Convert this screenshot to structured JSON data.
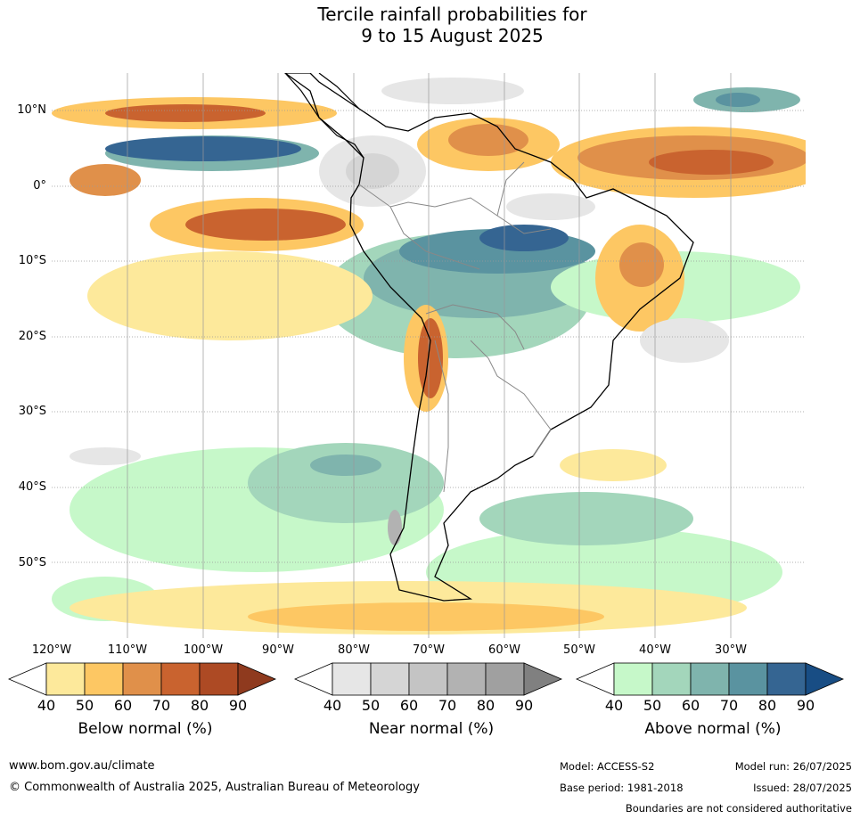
{
  "title": {
    "line1": "Tercile rainfall probabilities for",
    "line2": "9 to 15 August 2025"
  },
  "map": {
    "latitude_labels": [
      "10°N",
      "0°",
      "10°S",
      "20°S",
      "30°S",
      "40°S",
      "50°S"
    ],
    "longitude_labels": [
      "120°W",
      "110°W",
      "100°W",
      "90°W",
      "80°W",
      "70°W",
      "60°W",
      "50°W",
      "40°W",
      "30°W"
    ],
    "ocean_color": "#ffffff",
    "coast_color": "#000000",
    "border_color": "#888888"
  },
  "legends": [
    {
      "title": "Below normal (%)",
      "ticks": [
        "40",
        "50",
        "60",
        "70",
        "80",
        "90"
      ],
      "colors": [
        "#ffffff",
        "#fde99b",
        "#fdc763",
        "#e0904a",
        "#c9632f",
        "#ad4a24",
        "#8f3a1e"
      ]
    },
    {
      "title": "Near normal (%)",
      "ticks": [
        "40",
        "50",
        "60",
        "70",
        "80",
        "90"
      ],
      "colors": [
        "#ffffff",
        "#e6e6e6",
        "#d5d5d5",
        "#c4c4c4",
        "#b2b2b2",
        "#a0a0a0",
        "#808080"
      ]
    },
    {
      "title": "Above normal (%)",
      "ticks": [
        "40",
        "50",
        "60",
        "70",
        "80",
        "90"
      ],
      "colors": [
        "#ffffff",
        "#c6f8c9",
        "#a3d6bb",
        "#7fb4ad",
        "#5a93a0",
        "#356592",
        "#184d84"
      ]
    }
  ],
  "footer": {
    "website": "www.bom.gov.au/climate",
    "copyright": "© Commonwealth of Australia 2025, Australian Bureau of Meteorology",
    "model": "Model: ACCESS-S2",
    "base_period": "Base period: 1981-2018",
    "model_run": "Model run: 26/07/2025",
    "issued": "Issued: 28/07/2025",
    "disclaimer": "Boundaries are not considered authoritative"
  }
}
